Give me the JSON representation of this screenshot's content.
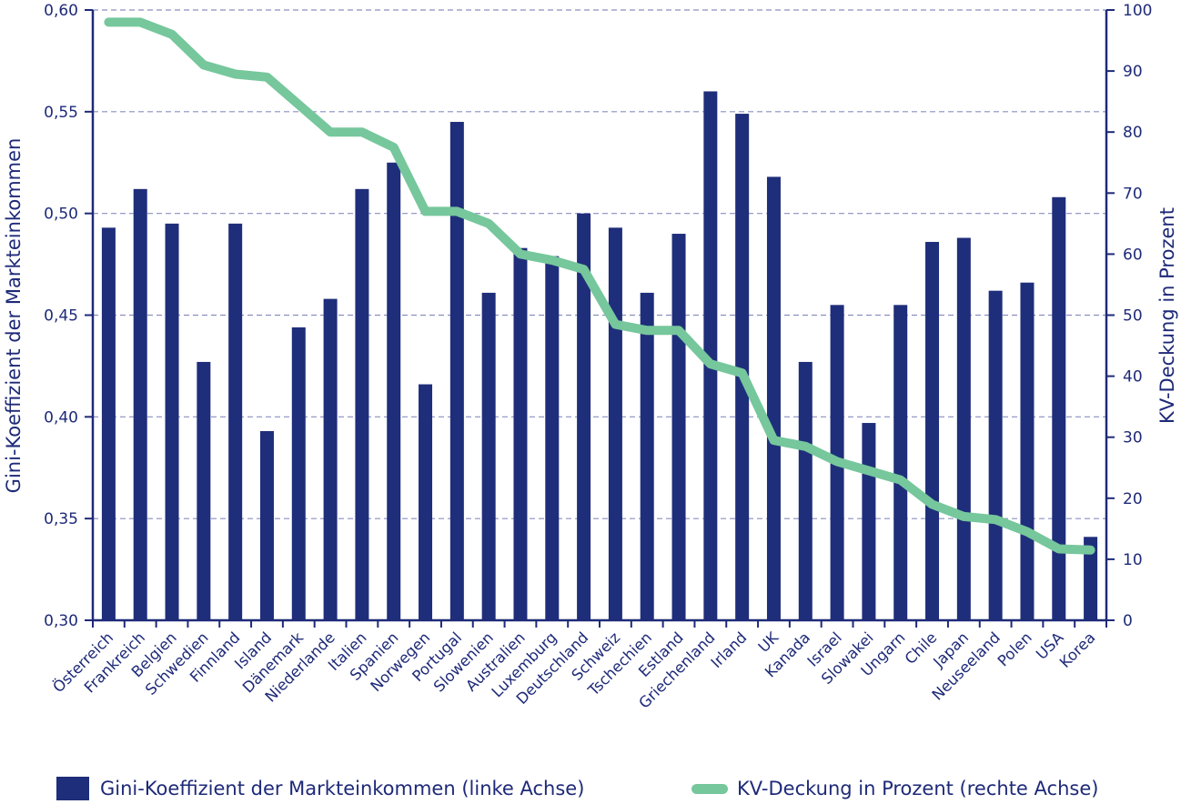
{
  "chart_data": {
    "type": "bar",
    "categories": [
      "Österreich",
      "Frankreich",
      "Belgien",
      "Schwedien",
      "Finnland",
      "Island",
      "Dänemark",
      "Niederlande",
      "Italien",
      "Spanien",
      "Norwegen",
      "Portugal",
      "Slowenien",
      "Australien",
      "Luxemburg",
      "Deutschland",
      "Schweiz",
      "Tschechien",
      "Estland",
      "Griechenland",
      "Irland",
      "UK",
      "Kanada",
      "Israel",
      "Slowakei",
      "Ungarn",
      "Chile",
      "Japan",
      "Neuseeland",
      "Polen",
      "USA",
      "Korea"
    ],
    "series": [
      {
        "name": "Gini-Koeffizient der Markteinkommen (linke Achse)",
        "kind": "bar",
        "axis": "left",
        "values": [
          0.493,
          0.512,
          0.495,
          0.427,
          0.495,
          0.393,
          0.444,
          0.458,
          0.512,
          0.525,
          0.416,
          0.545,
          0.461,
          0.483,
          0.479,
          0.5,
          0.493,
          0.461,
          0.49,
          0.56,
          0.549,
          0.518,
          0.427,
          0.455,
          0.397,
          0.455,
          0.486,
          0.488,
          0.462,
          0.466,
          0.508,
          0.341
        ]
      },
      {
        "name": "KV-Deckung in Prozent (rechte Achse)",
        "kind": "line",
        "axis": "right",
        "values": [
          98,
          98,
          96,
          91,
          89.5,
          89,
          84.5,
          80,
          80,
          77.5,
          67,
          67,
          65,
          60,
          59,
          57.5,
          48.5,
          47.5,
          47.5,
          42,
          40.5,
          29.5,
          28.5,
          26,
          24.5,
          23,
          19,
          17,
          16.5,
          14.5,
          11.7,
          11.5
        ]
      }
    ],
    "ylabel_left": "Gini-Koeffizient der Markteinkommen",
    "ylabel_right": "KV-Deckung in Prozent",
    "ylim_left": [
      0.3,
      0.6
    ],
    "ylim_right": [
      0,
      100
    ],
    "yticks_left": [
      "0,30",
      "0,35",
      "0,40",
      "0,45",
      "0,50",
      "0,55",
      "0,60"
    ],
    "yticks_right": [
      "0",
      "10",
      "20",
      "30",
      "40",
      "50",
      "60",
      "70",
      "80",
      "90",
      "100"
    ],
    "grid": "horizontal dashed",
    "legend_position": "bottom",
    "colors": {
      "bar": "#1f2e7a",
      "line": "#76c79c",
      "axis": "#1e2a78",
      "grid": "#8a8fc0"
    }
  }
}
